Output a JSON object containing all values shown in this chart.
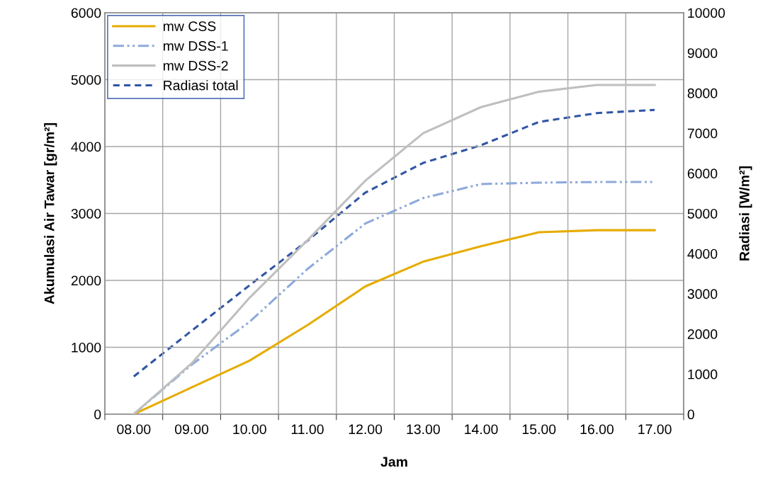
{
  "chart_data": {
    "type": "line",
    "xlabel": "Jam",
    "ylabel": "Akumulasi Air Tawar [gr/m²]",
    "y2label": "Radiasi [W/m²]",
    "categories": [
      "08.00",
      "09.00",
      "10.00",
      "11.00",
      "12.00",
      "13.00",
      "14.00",
      "15.00",
      "16.00",
      "17.00"
    ],
    "series": [
      {
        "name": "mw CSS",
        "color": "#e6ac00",
        "line_style": "solid",
        "values": [
          0,
          400,
          800,
          1330,
          1910,
          2280,
          2510,
          2720,
          2750,
          2750
        ]
      },
      {
        "name": "mw DSS-1",
        "color": "#8ea9db",
        "line_style": "dashdot",
        "values": [
          0,
          740,
          1380,
          2170,
          2850,
          3230,
          3440,
          3460,
          3470,
          3470
        ]
      },
      {
        "name": "mw DSS-2",
        "color": "#bfbfbf",
        "line_style": "solid",
        "values": [
          0,
          760,
          1740,
          2600,
          3490,
          4200,
          4590,
          4820,
          4920,
          4920
        ]
      },
      {
        "name": "Radiasi total",
        "color": "#2f55a4",
        "line_style": "dashed",
        "axis": "y2",
        "values": [
          940,
          2080,
          3210,
          4320,
          5520,
          6260,
          6700,
          7280,
          7500,
          7580
        ]
      }
    ],
    "ylim": [
      0,
      6000
    ],
    "yticks": [
      0,
      1000,
      2000,
      3000,
      4000,
      5000,
      6000
    ],
    "y2lim": [
      0,
      10000
    ],
    "y2ticks": [
      0,
      1000,
      2000,
      3000,
      4000,
      5000,
      6000,
      7000,
      8000,
      9000,
      10000
    ],
    "grid": true,
    "legend": "top left",
    "marker": "none"
  }
}
